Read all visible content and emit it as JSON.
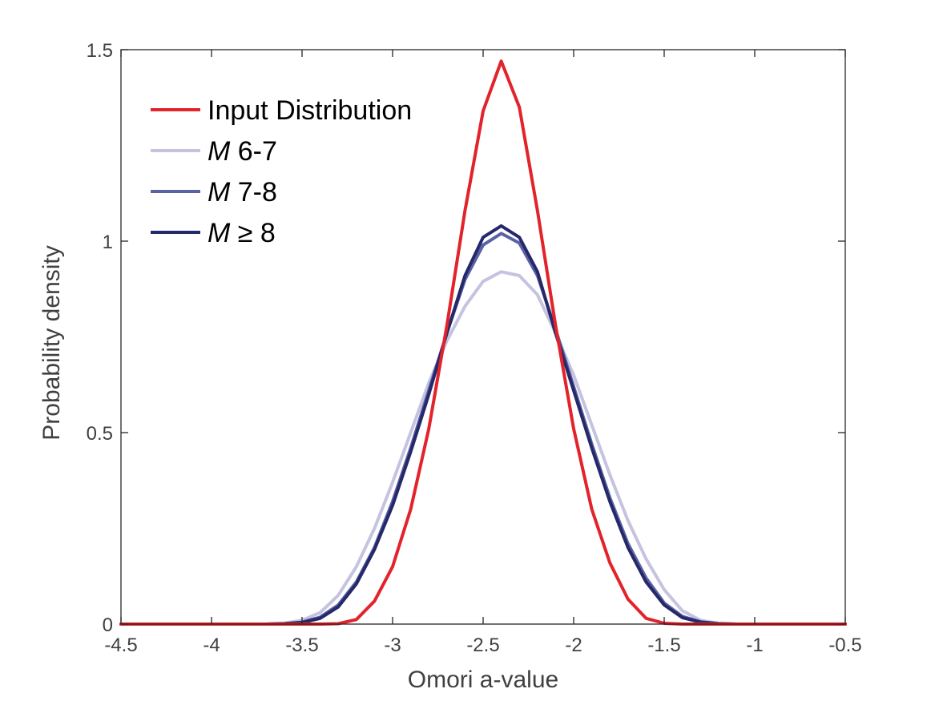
{
  "chart_data": {
    "type": "line",
    "title": "",
    "xlabel": "Omori a-value",
    "ylabel": "Probability density",
    "xlim": [
      -4.5,
      -0.5
    ],
    "ylim": [
      0,
      1.5
    ],
    "xticks": [
      -4.5,
      -4,
      -3.5,
      -3,
      -2.5,
      -2,
      -1.5,
      -1,
      -0.5
    ],
    "xtick_labels": [
      "-4.5",
      "-4",
      "-3.5",
      "-3",
      "-2.5",
      "-2",
      "-1.5",
      "-1",
      "-0.5"
    ],
    "yticks": [
      0,
      0.5,
      1,
      1.5
    ],
    "ytick_labels": [
      "0",
      "0.5",
      "1",
      "1.5"
    ],
    "grid": false,
    "legend_position": "top-left",
    "x": [
      -4.5,
      -4.4,
      -4.3,
      -4.2,
      -4.1,
      -4.0,
      -3.9,
      -3.8,
      -3.7,
      -3.6,
      -3.5,
      -3.4,
      -3.3,
      -3.2,
      -3.1,
      -3.0,
      -2.9,
      -2.8,
      -2.7,
      -2.6,
      -2.5,
      -2.4,
      -2.3,
      -2.2,
      -2.1,
      -2.0,
      -1.9,
      -1.8,
      -1.7,
      -1.6,
      -1.5,
      -1.4,
      -1.3,
      -1.2,
      -1.1,
      -1.0,
      -0.9,
      -0.8,
      -0.7,
      -0.6,
      -0.5
    ],
    "series": [
      {
        "legend_label": "Input Distribution",
        "color": "#e3232b",
        "values": [
          0,
          0,
          0,
          0,
          0,
          0,
          0,
          0,
          0,
          0,
          0,
          0,
          0.001,
          0.012,
          0.06,
          0.15,
          0.3,
          0.51,
          0.78,
          1.08,
          1.34,
          1.47,
          1.35,
          1.08,
          0.78,
          0.51,
          0.3,
          0.16,
          0.065,
          0.015,
          0.002,
          0,
          0,
          0,
          0,
          0,
          0,
          0,
          0,
          0,
          0
        ]
      },
      {
        "legend_italic": "M",
        "legend_label": " 6-7",
        "color": "#c5c3e0",
        "values": [
          0,
          0,
          0,
          0,
          0,
          0,
          0,
          0,
          0,
          0.002,
          0.01,
          0.03,
          0.075,
          0.15,
          0.25,
          0.37,
          0.5,
          0.63,
          0.74,
          0.83,
          0.895,
          0.92,
          0.91,
          0.86,
          0.76,
          0.65,
          0.52,
          0.39,
          0.27,
          0.17,
          0.09,
          0.035,
          0.01,
          0.002,
          0,
          0,
          0,
          0,
          0,
          0,
          0
        ]
      },
      {
        "legend_italic": "M",
        "legend_label": " 7-8",
        "color": "#5a62a5",
        "values": [
          0,
          0,
          0,
          0,
          0,
          0,
          0,
          0,
          0,
          0.001,
          0.005,
          0.018,
          0.05,
          0.11,
          0.2,
          0.32,
          0.46,
          0.61,
          0.76,
          0.9,
          0.99,
          1.02,
          0.995,
          0.91,
          0.77,
          0.62,
          0.47,
          0.33,
          0.21,
          0.12,
          0.055,
          0.02,
          0.006,
          0.001,
          0,
          0,
          0,
          0,
          0,
          0,
          0
        ]
      },
      {
        "legend_italic": "M",
        "legend_label": " ≥ 8",
        "color": "#252869",
        "values": [
          0,
          0,
          0,
          0,
          0,
          0,
          0,
          0,
          0,
          0.001,
          0.004,
          0.015,
          0.045,
          0.105,
          0.195,
          0.31,
          0.45,
          0.6,
          0.76,
          0.91,
          1.01,
          1.04,
          1.01,
          0.92,
          0.76,
          0.61,
          0.46,
          0.32,
          0.2,
          0.11,
          0.05,
          0.017,
          0.005,
          0.001,
          0,
          0,
          0,
          0,
          0,
          0,
          0
        ]
      }
    ]
  }
}
